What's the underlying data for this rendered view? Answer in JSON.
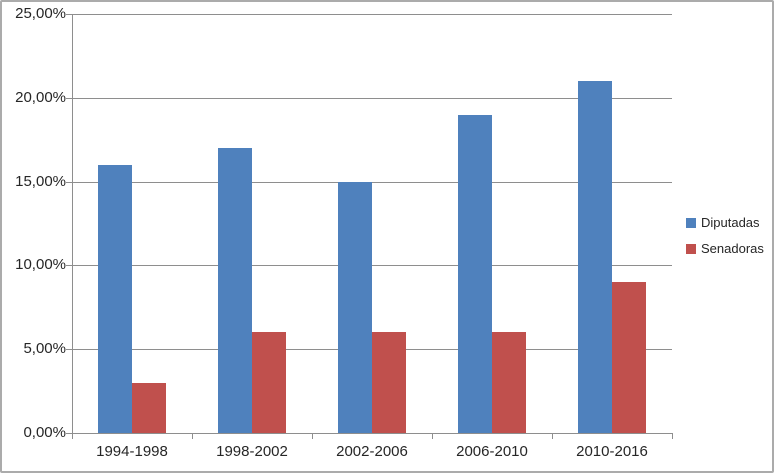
{
  "chart_data": {
    "type": "bar",
    "categories": [
      "1994-1998",
      "1998-2002",
      "2002-2006",
      "2006-2010",
      "2010-2016"
    ],
    "series": [
      {
        "name": "Diputadas",
        "color": "#4F81BD",
        "values": [
          16,
          17,
          15,
          19,
          21
        ]
      },
      {
        "name": "Senadoras",
        "color": "#C0504D",
        "values": [
          3,
          6,
          6,
          6,
          9
        ]
      }
    ],
    "title": "",
    "xlabel": "",
    "ylabel": "",
    "ylim": [
      0,
      25
    ],
    "y_tick_step": 5,
    "y_tick_labels": [
      "0,00%",
      "5,00%",
      "10,00%",
      "15,00%",
      "20,00%",
      "25,00%"
    ],
    "grid": true,
    "legend_position": "right",
    "colors": {
      "gridline": "#8e8e8e",
      "axis": "#8e8e8e",
      "text": "#262626",
      "chart_border": "#ababab",
      "background": "#ffffff"
    }
  }
}
